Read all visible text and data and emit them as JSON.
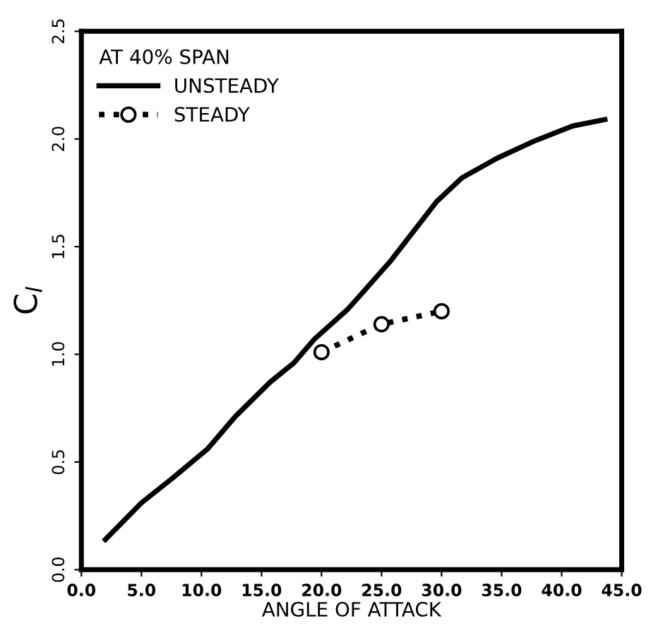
{
  "chart_data": {
    "type": "line",
    "xlabel": "ANGLE OF ATTACK",
    "ylabel": "C$_{l}$",
    "legend_title": "AT 40% SPAN",
    "legend": "top left",
    "grid": false,
    "xlim": [
      0,
      45
    ],
    "ylim": [
      0,
      2.5
    ],
    "xticks": [
      {
        "value": 0,
        "label": "0.0"
      },
      {
        "value": 5,
        "label": "5.0"
      },
      {
        "value": 10,
        "label": "10.0"
      },
      {
        "value": 15,
        "label": "15.0"
      },
      {
        "value": 20,
        "label": "20.0"
      },
      {
        "value": 25,
        "label": "25.0"
      },
      {
        "value": 30,
        "label": "30.0"
      },
      {
        "value": 35,
        "label": "35.0"
      },
      {
        "value": 40,
        "label": "40.0"
      },
      {
        "value": 45,
        "label": "45.0"
      }
    ],
    "yticks": [
      {
        "value": 0,
        "label": "0.0"
      },
      {
        "value": 0.5,
        "label": "0.5"
      },
      {
        "value": 1,
        "label": "1.0"
      },
      {
        "value": 1.5,
        "label": "1.5"
      },
      {
        "value": 2,
        "label": "2.0"
      },
      {
        "value": 2.5,
        "label": "2.5"
      }
    ],
    "series": [
      {
        "name": "UNSTEADY",
        "color": "#000000",
        "line_style": "solid",
        "marker": "none",
        "x": [
          2.0,
          5.0,
          7.7,
          10.5,
          12.8,
          15.7,
          17.7,
          19.4,
          22.2,
          25.7,
          29.6,
          31.7,
          34.6,
          37.7,
          40.9,
          43.6
        ],
        "values": [
          0.14,
          0.31,
          0.43,
          0.56,
          0.71,
          0.87,
          0.96,
          1.07,
          1.21,
          1.43,
          1.71,
          1.82,
          1.91,
          1.99,
          2.06,
          2.09
        ]
      },
      {
        "name": "STEADY",
        "color": "#000000",
        "line_style": "dotted",
        "marker": "circle",
        "x": [
          20,
          25,
          30
        ],
        "values": [
          1.01,
          1.14,
          1.2
        ]
      }
    ]
  }
}
